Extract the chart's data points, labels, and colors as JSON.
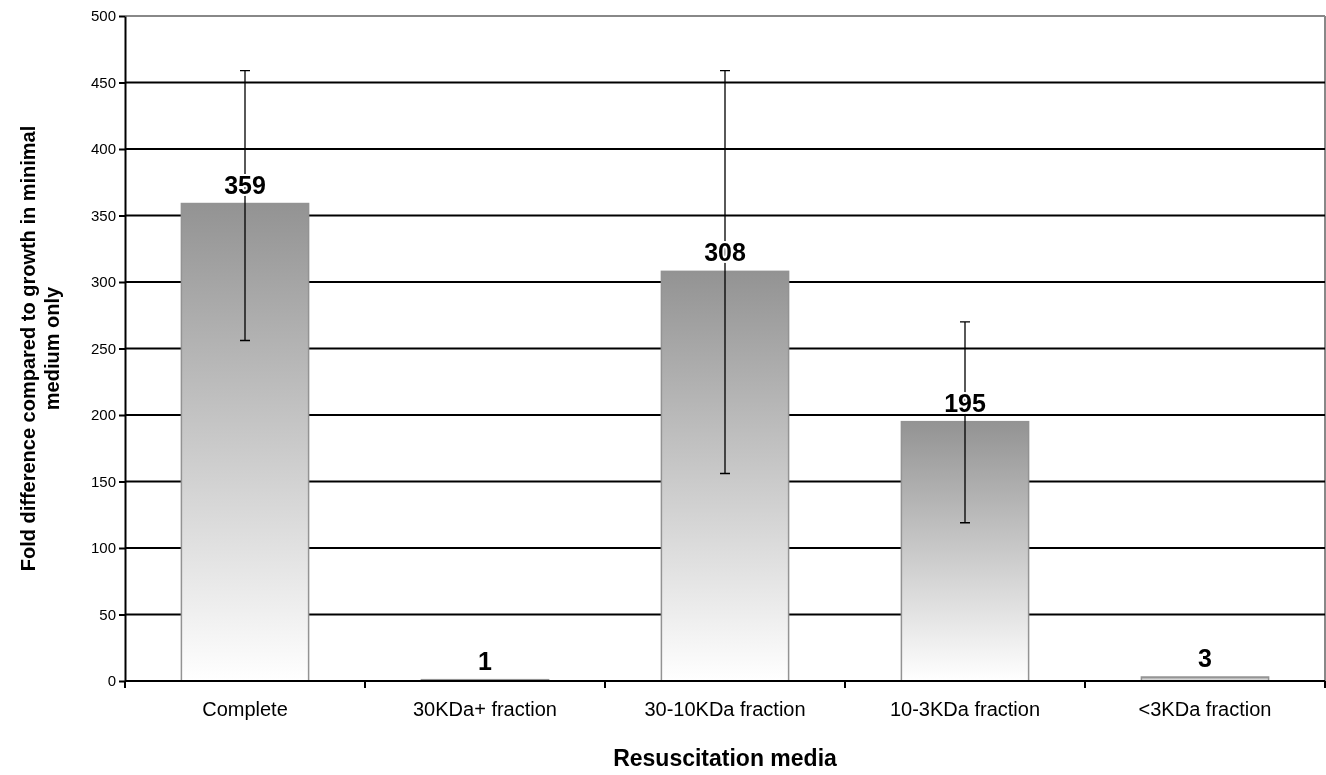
{
  "chart_data": {
    "type": "bar",
    "xlabel": "Resuscitation media",
    "ylabel": "Fold difference compared to growth in minimal medium only",
    "categories": [
      "Complete",
      "30KDa+ fraction",
      "30-10KDa fraction",
      "10-3KDa fraction",
      "<3KDa fraction"
    ],
    "values": [
      359,
      1,
      308,
      195,
      3
    ],
    "errors": [
      [
        256,
        459
      ],
      null,
      [
        156,
        459
      ],
      [
        119,
        270
      ],
      null
    ],
    "color": "#939393",
    "data_labels": true,
    "grid": "y",
    "ylim": [
      0,
      500
    ],
    "yticks": [
      0,
      50,
      100,
      150,
      200,
      250,
      300,
      350,
      400,
      450,
      500
    ]
  }
}
